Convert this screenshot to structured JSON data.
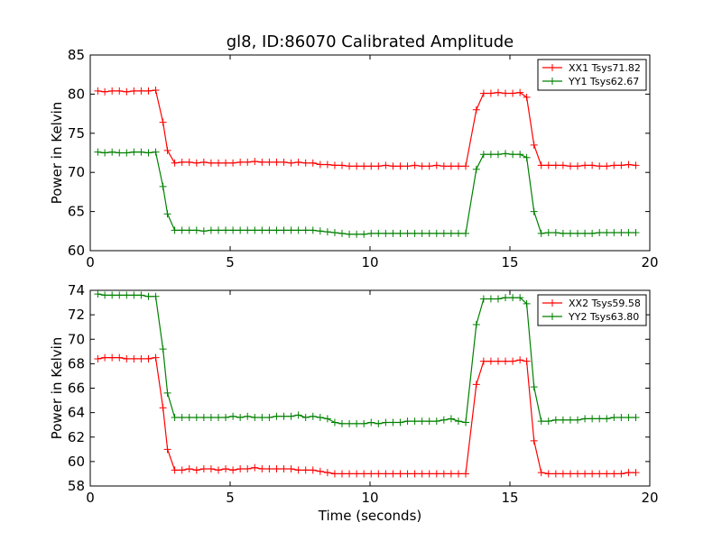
{
  "chart_data": [
    {
      "type": "line",
      "title": "gl8, ID:86070 Calibrated Amplitude",
      "xlabel": "",
      "ylabel": "Power in Kelvin",
      "xlim": [
        0,
        20
      ],
      "ylim": [
        60,
        85
      ],
      "xticks": [
        0,
        5,
        10,
        15,
        20
      ],
      "yticks": [
        60,
        65,
        70,
        75,
        80,
        85
      ],
      "grid": false,
      "legend": "top-right",
      "series": [
        {
          "name": "XX1 Tsys71.82",
          "color": "#ff0000",
          "x": [
            0.27,
            0.52,
            0.78,
            1.04,
            1.3,
            1.56,
            1.82,
            2.08,
            2.34,
            2.6,
            2.76,
            3.02,
            3.28,
            3.54,
            3.8,
            4.06,
            4.32,
            4.58,
            4.84,
            5.1,
            5.36,
            5.62,
            5.88,
            6.14,
            6.4,
            6.66,
            6.92,
            7.18,
            7.44,
            7.7,
            7.96,
            8.22,
            8.48,
            8.74,
            9.0,
            9.26,
            9.52,
            9.78,
            10.04,
            10.3,
            10.56,
            10.82,
            11.08,
            11.34,
            11.6,
            11.86,
            12.12,
            12.38,
            12.64,
            12.9,
            13.16,
            13.42,
            13.8,
            14.06,
            14.32,
            14.58,
            14.84,
            15.1,
            15.36,
            15.6,
            15.86,
            16.12,
            16.38,
            16.64,
            16.9,
            17.16,
            17.42,
            17.68,
            17.94,
            18.2,
            18.46,
            18.72,
            18.98,
            19.24,
            19.5
          ],
          "values": [
            80.4,
            80.3,
            80.4,
            80.4,
            80.3,
            80.4,
            80.4,
            80.4,
            80.5,
            76.4,
            72.8,
            71.2,
            71.3,
            71.3,
            71.2,
            71.3,
            71.2,
            71.2,
            71.2,
            71.2,
            71.3,
            71.3,
            71.4,
            71.3,
            71.3,
            71.3,
            71.3,
            71.2,
            71.3,
            71.2,
            71.2,
            71.0,
            71.0,
            70.9,
            70.9,
            70.8,
            70.8,
            70.8,
            70.8,
            70.8,
            70.9,
            70.8,
            70.8,
            70.8,
            70.9,
            70.8,
            70.8,
            70.9,
            70.8,
            70.8,
            70.8,
            70.8,
            78.0,
            80.1,
            80.1,
            80.2,
            80.1,
            80.1,
            80.2,
            79.6,
            73.5,
            70.9,
            70.9,
            70.9,
            70.9,
            70.8,
            70.8,
            70.9,
            70.9,
            70.8,
            70.8,
            70.9,
            70.9,
            71.0,
            70.9
          ]
        },
        {
          "name": "YY1 Tsys62.67",
          "color": "#008000",
          "x": [
            0.27,
            0.52,
            0.78,
            1.04,
            1.3,
            1.56,
            1.82,
            2.08,
            2.34,
            2.6,
            2.76,
            3.02,
            3.28,
            3.54,
            3.8,
            4.06,
            4.32,
            4.58,
            4.84,
            5.1,
            5.36,
            5.62,
            5.88,
            6.14,
            6.4,
            6.66,
            6.92,
            7.18,
            7.44,
            7.7,
            7.96,
            8.22,
            8.48,
            8.74,
            9.0,
            9.26,
            9.52,
            9.78,
            10.04,
            10.3,
            10.56,
            10.82,
            11.08,
            11.34,
            11.6,
            11.86,
            12.12,
            12.38,
            12.64,
            12.9,
            13.16,
            13.42,
            13.8,
            14.06,
            14.32,
            14.58,
            14.84,
            15.1,
            15.36,
            15.6,
            15.86,
            16.12,
            16.38,
            16.64,
            16.9,
            17.16,
            17.42,
            17.68,
            17.94,
            18.2,
            18.46,
            18.72,
            18.98,
            19.24,
            19.5
          ],
          "values": [
            72.6,
            72.5,
            72.6,
            72.5,
            72.5,
            72.6,
            72.6,
            72.5,
            72.6,
            68.2,
            64.7,
            62.6,
            62.6,
            62.6,
            62.6,
            62.5,
            62.6,
            62.6,
            62.6,
            62.6,
            62.6,
            62.6,
            62.6,
            62.6,
            62.6,
            62.6,
            62.6,
            62.6,
            62.6,
            62.6,
            62.6,
            62.5,
            62.4,
            62.3,
            62.2,
            62.1,
            62.1,
            62.1,
            62.2,
            62.2,
            62.2,
            62.2,
            62.2,
            62.2,
            62.2,
            62.2,
            62.2,
            62.2,
            62.2,
            62.2,
            62.2,
            62.2,
            70.4,
            72.3,
            72.3,
            72.3,
            72.4,
            72.3,
            72.3,
            71.9,
            65.0,
            62.2,
            62.3,
            62.3,
            62.2,
            62.2,
            62.2,
            62.2,
            62.2,
            62.3,
            62.3,
            62.3,
            62.3,
            62.3,
            62.3
          ]
        }
      ]
    },
    {
      "type": "line",
      "title": "",
      "xlabel": "Time (seconds)",
      "ylabel": "Power in Kelvin",
      "xlim": [
        0,
        20
      ],
      "ylim": [
        58,
        74
      ],
      "xticks": [
        0,
        5,
        10,
        15,
        20
      ],
      "yticks": [
        58,
        60,
        62,
        64,
        66,
        68,
        70,
        72,
        74
      ],
      "grid": false,
      "legend": "top-right",
      "series": [
        {
          "name": "XX2 Tsys59.58",
          "color": "#ff0000",
          "x": [
            0.27,
            0.52,
            0.78,
            1.04,
            1.3,
            1.56,
            1.82,
            2.08,
            2.34,
            2.6,
            2.76,
            3.02,
            3.28,
            3.54,
            3.8,
            4.06,
            4.32,
            4.58,
            4.84,
            5.1,
            5.36,
            5.62,
            5.88,
            6.14,
            6.4,
            6.66,
            6.92,
            7.18,
            7.44,
            7.7,
            7.96,
            8.22,
            8.48,
            8.74,
            9.0,
            9.26,
            9.52,
            9.78,
            10.04,
            10.3,
            10.56,
            10.82,
            11.08,
            11.34,
            11.6,
            11.86,
            12.12,
            12.38,
            12.64,
            12.9,
            13.16,
            13.42,
            13.8,
            14.06,
            14.32,
            14.58,
            14.84,
            15.1,
            15.36,
            15.6,
            15.86,
            16.12,
            16.38,
            16.64,
            16.9,
            17.16,
            17.42,
            17.68,
            17.94,
            18.2,
            18.46,
            18.72,
            18.98,
            19.24,
            19.5
          ],
          "values": [
            68.4,
            68.5,
            68.5,
            68.5,
            68.4,
            68.4,
            68.4,
            68.4,
            68.5,
            64.4,
            61.0,
            59.3,
            59.3,
            59.4,
            59.3,
            59.4,
            59.4,
            59.3,
            59.4,
            59.3,
            59.4,
            59.4,
            59.5,
            59.4,
            59.4,
            59.4,
            59.4,
            59.4,
            59.3,
            59.3,
            59.3,
            59.2,
            59.1,
            59.0,
            59.0,
            59.0,
            59.0,
            59.0,
            59.0,
            59.0,
            59.0,
            59.0,
            59.0,
            59.0,
            59.0,
            59.0,
            59.0,
            59.0,
            59.0,
            59.0,
            59.0,
            59.0,
            66.3,
            68.2,
            68.2,
            68.2,
            68.2,
            68.2,
            68.3,
            68.2,
            61.7,
            59.1,
            59.0,
            59.0,
            59.0,
            59.0,
            59.0,
            59.0,
            59.0,
            59.0,
            59.0,
            59.0,
            59.0,
            59.1,
            59.1
          ]
        },
        {
          "name": "YY2 Tsys63.80",
          "color": "#008000",
          "x": [
            0.27,
            0.52,
            0.78,
            1.04,
            1.3,
            1.56,
            1.82,
            2.08,
            2.34,
            2.6,
            2.76,
            3.02,
            3.28,
            3.54,
            3.8,
            4.06,
            4.32,
            4.58,
            4.84,
            5.1,
            5.36,
            5.62,
            5.88,
            6.14,
            6.4,
            6.66,
            6.92,
            7.18,
            7.44,
            7.7,
            7.96,
            8.22,
            8.48,
            8.74,
            9.0,
            9.26,
            9.52,
            9.78,
            10.04,
            10.3,
            10.56,
            10.82,
            11.08,
            11.34,
            11.6,
            11.86,
            12.12,
            12.38,
            12.64,
            12.9,
            13.16,
            13.42,
            13.8,
            14.06,
            14.32,
            14.58,
            14.84,
            15.1,
            15.36,
            15.6,
            15.86,
            16.12,
            16.38,
            16.64,
            16.9,
            17.16,
            17.42,
            17.68,
            17.94,
            18.2,
            18.46,
            18.72,
            18.98,
            19.24,
            19.5
          ],
          "values": [
            73.7,
            73.6,
            73.6,
            73.6,
            73.6,
            73.6,
            73.6,
            73.5,
            73.5,
            69.2,
            65.6,
            63.6,
            63.6,
            63.6,
            63.6,
            63.6,
            63.6,
            63.6,
            63.6,
            63.7,
            63.6,
            63.7,
            63.6,
            63.6,
            63.6,
            63.7,
            63.7,
            63.7,
            63.8,
            63.6,
            63.7,
            63.6,
            63.5,
            63.2,
            63.1,
            63.1,
            63.1,
            63.1,
            63.2,
            63.1,
            63.2,
            63.2,
            63.2,
            63.3,
            63.3,
            63.3,
            63.3,
            63.3,
            63.4,
            63.5,
            63.3,
            63.2,
            71.2,
            73.3,
            73.3,
            73.3,
            73.4,
            73.4,
            73.4,
            72.9,
            66.1,
            63.3,
            63.3,
            63.4,
            63.4,
            63.4,
            63.4,
            63.5,
            63.5,
            63.5,
            63.5,
            63.6,
            63.6,
            63.6,
            63.6
          ]
        }
      ]
    }
  ]
}
